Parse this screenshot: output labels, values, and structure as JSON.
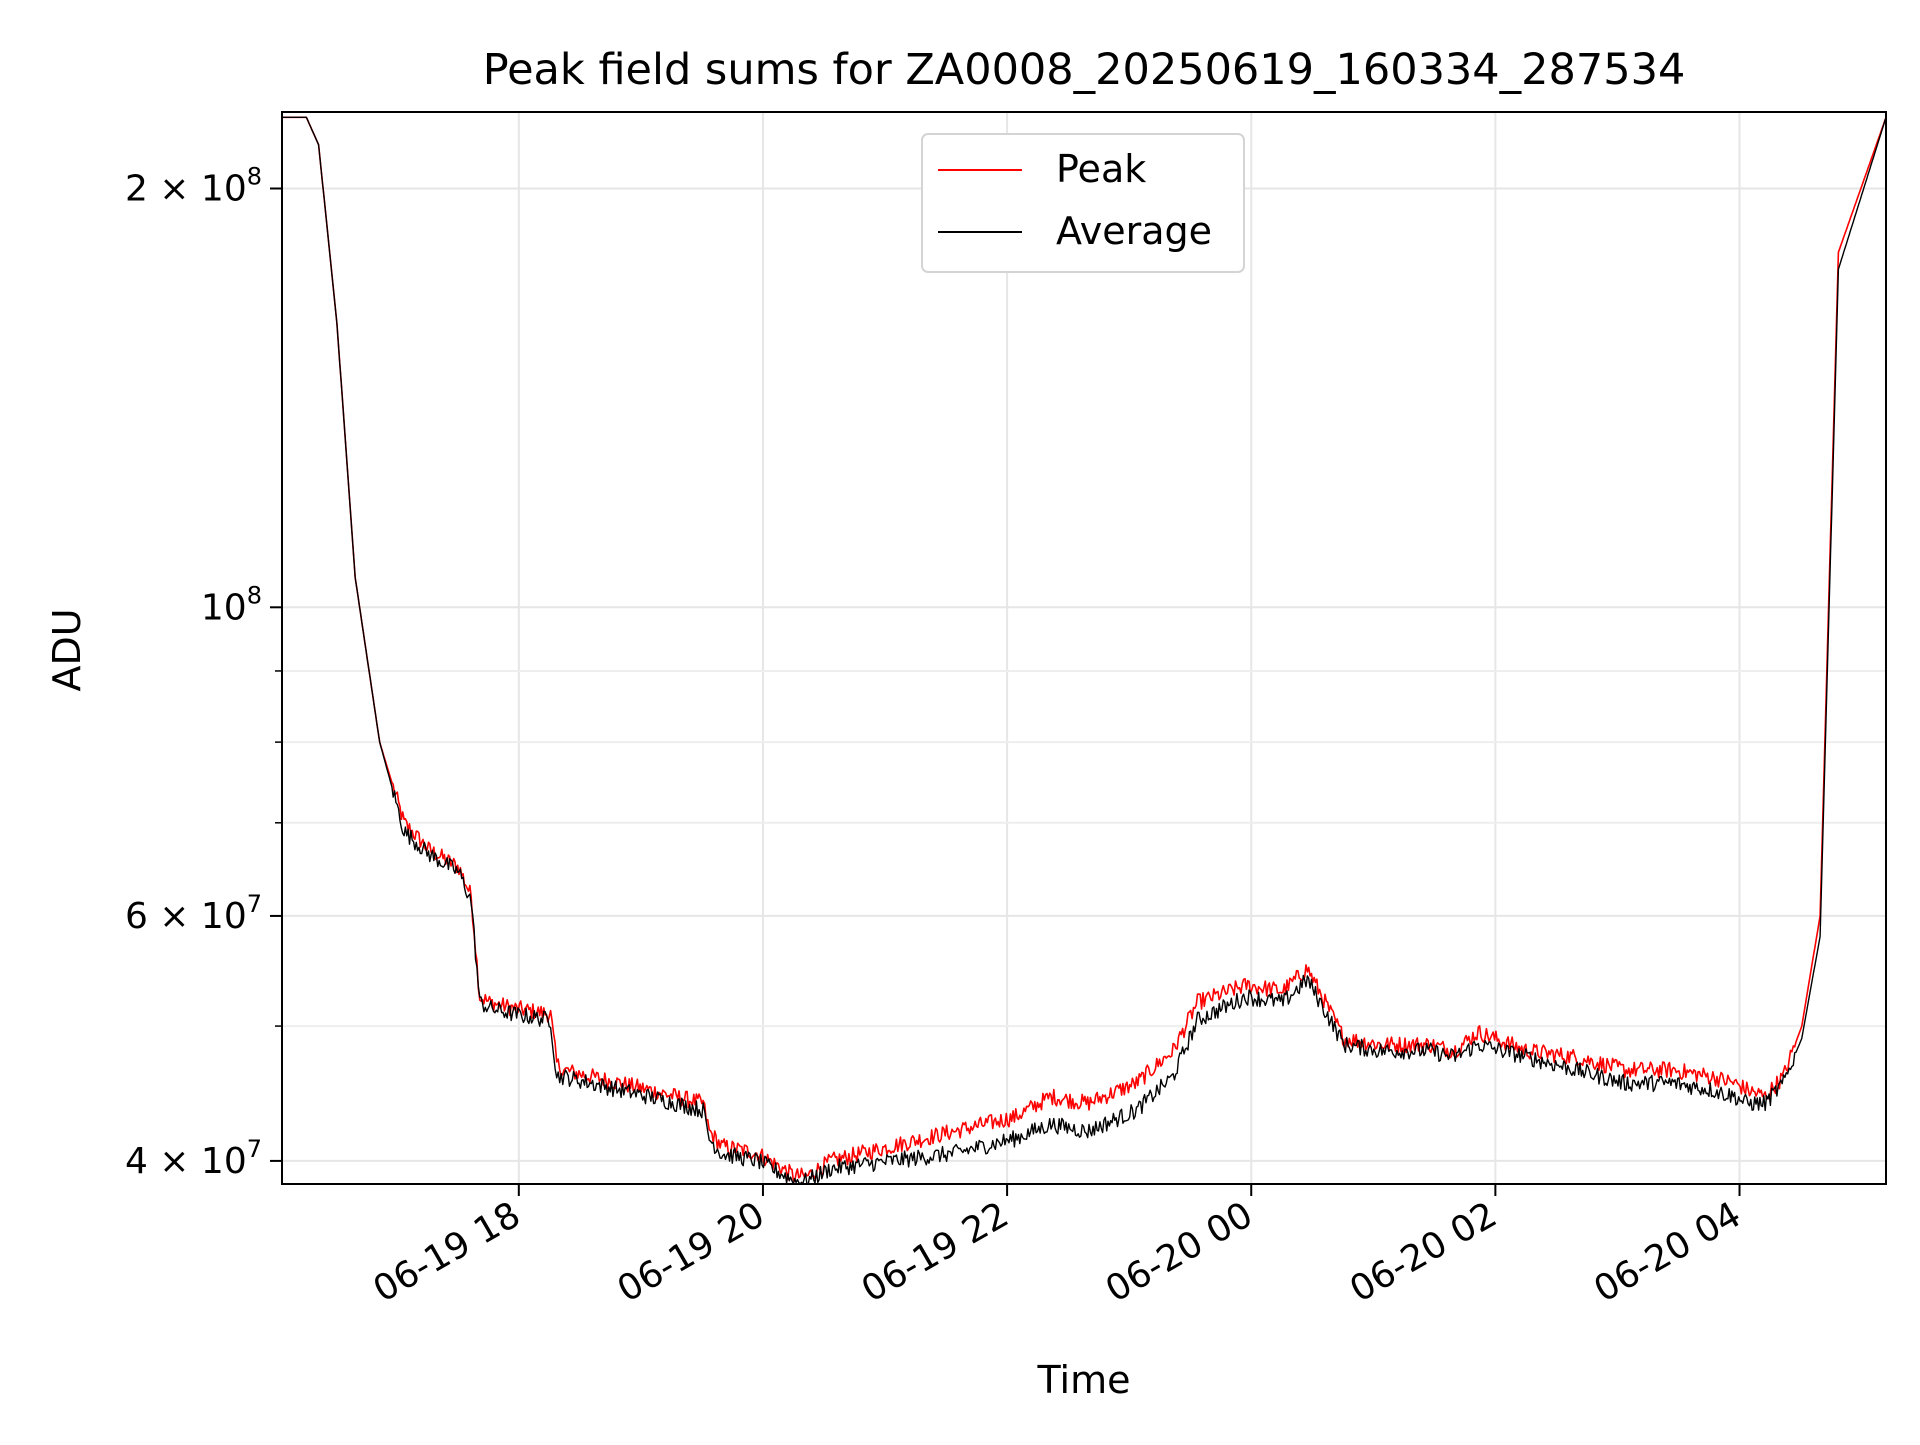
{
  "chart_data": {
    "type": "line",
    "title": "Peak field sums for ZA0008_20250619_160334_287534",
    "xlabel": "Time",
    "ylabel": "ADU",
    "x_tick_labels": [
      "06-19 18",
      "06-19 20",
      "06-19 22",
      "06-20 00",
      "06-20 02",
      "06-20 04"
    ],
    "x_ticks_hours": [
      1.94,
      3.94,
      5.94,
      7.94,
      9.94,
      11.94
    ],
    "y_scale": "log",
    "y_tick_values": [
      40000000,
      60000000,
      100000000,
      200000000
    ],
    "y_tick_labels": [
      {
        "base": "4 × 10",
        "exp": "7"
      },
      {
        "base": "6 × 10",
        "exp": "7"
      },
      {
        "base": "10",
        "exp": "8"
      },
      {
        "base": "2 × 10",
        "exp": "8"
      }
    ],
    "xlim": [
      "06-19 16:03",
      "06-20 05:11"
    ],
    "ylim": [
      38500000,
      227000000
    ],
    "grid": true,
    "legend_position": "top-center",
    "series": [
      {
        "name": "Peak",
        "color": "#ff0000",
        "x_hours": [
          0,
          0.2,
          0.3,
          0.45,
          0.6,
          0.8,
          1.0,
          1.2,
          1.45,
          1.55,
          1.62,
          1.7,
          1.9,
          2.2,
          2.25,
          2.3,
          3.0,
          3.45,
          3.5,
          3.6,
          3.9,
          4.2,
          4.3,
          4.5,
          5.0,
          5.5,
          6.0,
          6.3,
          6.6,
          7.0,
          7.3,
          7.5,
          7.9,
          8.2,
          8.4,
          8.7,
          9.0,
          9.4,
          9.6,
          9.8,
          10.2,
          10.6,
          11.0,
          11.4,
          11.7,
          11.9,
          12.0,
          12.15,
          12.3,
          12.45,
          12.6,
          12.75,
          13.14
        ],
        "values": [
          225000000,
          225000000,
          215000000,
          160000000,
          105000000,
          80000000,
          70000000,
          67000000,
          65000000,
          62000000,
          52500000,
          52000000,
          51500000,
          51000000,
          47000000,
          46500000,
          45000000,
          44000000,
          42000000,
          41000000,
          40500000,
          39000000,
          39000000,
          40000000,
          41000000,
          42000000,
          43000000,
          44500000,
          44000000,
          45500000,
          48000000,
          52000000,
          53500000,
          53000000,
          55000000,
          49000000,
          48500000,
          48500000,
          48000000,
          49500000,
          48000000,
          47500000,
          46500000,
          46500000,
          46000000,
          45500000,
          45000000,
          44500000,
          46000000,
          50000000,
          60000000,
          180000000,
          225000000
        ]
      },
      {
        "name": "Average",
        "color": "#000000",
        "x_hours": [
          0,
          0.2,
          0.3,
          0.45,
          0.6,
          0.8,
          1.0,
          1.2,
          1.45,
          1.55,
          1.62,
          1.7,
          1.9,
          2.2,
          2.25,
          2.3,
          3.0,
          3.45,
          3.5,
          3.6,
          3.9,
          4.2,
          4.3,
          4.5,
          5.0,
          5.5,
          6.0,
          6.3,
          6.6,
          7.0,
          7.3,
          7.5,
          7.9,
          8.2,
          8.4,
          8.7,
          9.0,
          9.4,
          9.6,
          9.8,
          10.2,
          10.6,
          11.0,
          11.4,
          11.7,
          11.9,
          12.0,
          12.15,
          12.3,
          12.45,
          12.6,
          12.75,
          13.14
        ],
        "values": [
          225000000,
          225000000,
          215000000,
          160000000,
          105000000,
          80000000,
          69000000,
          66500000,
          64500000,
          61500000,
          52000000,
          51500000,
          51000000,
          50500000,
          46000000,
          46000000,
          44500000,
          43500000,
          41500000,
          40500000,
          40000000,
          38700000,
          38700000,
          39500000,
          40000000,
          40500000,
          41500000,
          42500000,
          42000000,
          43500000,
          46000000,
          50500000,
          52500000,
          52000000,
          54000000,
          48500000,
          48000000,
          48000000,
          47500000,
          48500000,
          47500000,
          46500000,
          45500000,
          45500000,
          45000000,
          44500000,
          44000000,
          44000000,
          45500000,
          49000000,
          58000000,
          175000000,
          225000000
        ]
      }
    ]
  }
}
